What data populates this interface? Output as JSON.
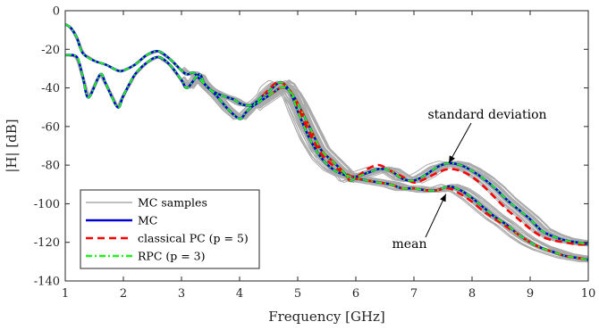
{
  "chart_data": {
    "type": "line",
    "xlabel": "Frequency [GHz]",
    "ylabel": "|H| [dB]",
    "xlim": [
      1,
      10
    ],
    "ylim": [
      -140,
      0
    ],
    "xticks": [
      1,
      2,
      3,
      4,
      5,
      6,
      7,
      8,
      9,
      10
    ],
    "yticks": [
      0,
      -20,
      -40,
      -60,
      -80,
      -100,
      -120,
      -140
    ],
    "legend_placement": "bottom-left",
    "legend": [
      {
        "label": "MC samples",
        "color": "#aaaaaa",
        "style": "solid"
      },
      {
        "label": "MC",
        "color": "#0000d0",
        "style": "solid"
      },
      {
        "label": "classical PC (p = 5)",
        "color": "#ff0000",
        "style": "dashed"
      },
      {
        "label": "RPC (p = 3)",
        "color": "#22ee22",
        "style": "dashdot"
      }
    ],
    "annotations": [
      {
        "text": "standard deviation",
        "points_to": [
          7.6,
          -79
        ]
      },
      {
        "text": "mean",
        "points_to": [
          7.55,
          -95
        ]
      }
    ],
    "series": [
      {
        "name": "MC",
        "role": "standard deviation",
        "x": [
          1.0,
          1.1,
          1.2,
          1.3,
          1.5,
          1.7,
          1.9,
          2.0,
          2.2,
          2.4,
          2.6,
          2.8,
          3.0,
          3.1,
          3.2,
          3.3,
          3.5,
          3.7,
          3.9,
          4.0,
          4.1,
          4.2,
          4.3,
          4.4,
          4.5,
          4.6,
          4.7,
          4.8,
          4.9,
          5.0,
          5.2,
          5.4,
          5.6,
          5.8,
          6.0,
          6.2,
          6.4,
          6.6,
          6.8,
          7.0,
          7.2,
          7.4,
          7.6,
          7.8,
          8.0,
          8.2,
          8.4,
          8.6,
          8.8,
          9.0,
          9.2,
          9.4,
          9.6,
          9.8,
          10.0
        ],
        "values": [
          -7,
          -9,
          -14,
          -22,
          -26,
          -28,
          -31,
          -31,
          -28,
          -23,
          -21,
          -25,
          -31,
          -33,
          -32,
          -35,
          -41,
          -44,
          -46,
          -48,
          -49,
          -49,
          -47,
          -44,
          -42,
          -39,
          -37,
          -39,
          -44,
          -52,
          -66,
          -76,
          -82,
          -85,
          -86,
          -84,
          -82,
          -83,
          -87,
          -88,
          -85,
          -81,
          -79,
          -80,
          -83,
          -87,
          -92,
          -98,
          -103,
          -108,
          -114,
          -117,
          -119,
          -120,
          -121
        ]
      },
      {
        "name": "MC",
        "role": "mean",
        "x": [
          1.0,
          1.2,
          1.3,
          1.4,
          1.6,
          1.7,
          1.9,
          2.0,
          2.2,
          2.4,
          2.6,
          2.8,
          3.0,
          3.1,
          3.3,
          3.4,
          3.6,
          3.8,
          4.0,
          4.1,
          4.2,
          4.3,
          4.4,
          4.5,
          4.6,
          4.7,
          4.8,
          4.9,
          5.0,
          5.2,
          5.4,
          5.6,
          5.8,
          5.9,
          6.0,
          6.2,
          6.4,
          6.6,
          6.8,
          7.0,
          7.2,
          7.4,
          7.6,
          7.8,
          8.0,
          8.2,
          8.4,
          8.6,
          8.8,
          9.0,
          9.2,
          9.4,
          9.6,
          9.8,
          10.0
        ],
        "values": [
          -23,
          -24,
          -34,
          -45,
          -33,
          -38,
          -50,
          -44,
          -33,
          -27,
          -24,
          -28,
          -36,
          -40,
          -33,
          -38,
          -44,
          -51,
          -56,
          -53,
          -50,
          -48,
          -46,
          -44,
          -42,
          -40,
          -40,
          -43,
          -48,
          -60,
          -72,
          -78,
          -84,
          -88,
          -87,
          -88,
          -89,
          -90,
          -92,
          -92,
          -93,
          -93,
          -91,
          -93,
          -97,
          -102,
          -107,
          -111,
          -116,
          -120,
          -123,
          -125,
          -127,
          -128,
          -129
        ]
      },
      {
        "name": "classical PC (p = 5)",
        "role": "standard deviation",
        "x": [
          4.4,
          4.5,
          4.6,
          4.7,
          4.8,
          4.9,
          5.0,
          5.2,
          5.4,
          5.6,
          5.8,
          6.0,
          6.2,
          6.4,
          6.6,
          6.8,
          7.0,
          7.2,
          7.4,
          7.6,
          7.8,
          8.0,
          8.2,
          8.4,
          8.6,
          8.8,
          9.0,
          9.2,
          9.4,
          9.6,
          9.8,
          10.0
        ],
        "values": [
          -44,
          -41,
          -38,
          -37,
          -39,
          -43,
          -50,
          -63,
          -74,
          -80,
          -84,
          -86,
          -82,
          -80,
          -83,
          -86,
          -89,
          -87,
          -84,
          -82,
          -83,
          -86,
          -91,
          -97,
          -103,
          -108,
          -113,
          -117,
          -119,
          -120,
          -121,
          -121
        ]
      },
      {
        "name": "classical PC (p = 5)",
        "role": "mean",
        "x": [
          4.5,
          4.6,
          4.7,
          4.8,
          4.9,
          5.0,
          5.2,
          5.4,
          5.6,
          5.8,
          5.9,
          6.0,
          6.2,
          6.4,
          6.6,
          6.8,
          7.0,
          7.2,
          7.4,
          7.6,
          7.8,
          8.0,
          8.2,
          8.4,
          8.6,
          8.8,
          9.0,
          9.2,
          9.4,
          9.6,
          9.8,
          10.0
        ],
        "values": [
          -44,
          -42,
          -40,
          -40,
          -43,
          -48,
          -60,
          -72,
          -78,
          -84,
          -88,
          -87,
          -88,
          -89,
          -90,
          -92,
          -92,
          -93,
          -93,
          -92,
          -95,
          -99,
          -104,
          -108,
          -112,
          -116,
          -120,
          -123,
          -125,
          -127,
          -128,
          -129
        ]
      },
      {
        "name": "RPC (p = 3)",
        "role": "standard deviation",
        "x": [
          1.0,
          1.1,
          1.2,
          1.3,
          1.5,
          1.7,
          1.9,
          2.0,
          2.2,
          2.4,
          2.6,
          2.8,
          3.0,
          3.1,
          3.2,
          3.3,
          3.5,
          3.7,
          3.9,
          4.0,
          4.1,
          4.2,
          4.3,
          4.4,
          4.5,
          4.6,
          4.7,
          4.8,
          4.9,
          5.0,
          5.2,
          5.4,
          5.6,
          5.8,
          6.0,
          6.2,
          6.4,
          6.6,
          6.8,
          7.0,
          7.2,
          7.4,
          7.6,
          7.8,
          8.0,
          8.2,
          8.4,
          8.6,
          8.8,
          9.0,
          9.2,
          9.4,
          9.6,
          9.8,
          10.0
        ],
        "values": [
          -7,
          -9,
          -14,
          -22,
          -26,
          -28,
          -31,
          -31,
          -28,
          -23,
          -21,
          -25,
          -31,
          -33,
          -32,
          -35,
          -41,
          -44,
          -46,
          -48,
          -49,
          -49,
          -47,
          -44,
          -42,
          -39,
          -37,
          -39,
          -44,
          -52,
          -66,
          -76,
          -82,
          -85,
          -86,
          -84,
          -82,
          -83,
          -87,
          -88,
          -85,
          -81,
          -79,
          -80,
          -83,
          -87,
          -92,
          -98,
          -103,
          -108,
          -114,
          -117,
          -119,
          -120,
          -121
        ]
      },
      {
        "name": "RPC (p = 3)",
        "role": "mean",
        "x": [
          1.0,
          1.2,
          1.3,
          1.4,
          1.6,
          1.7,
          1.9,
          2.0,
          2.2,
          2.4,
          2.6,
          2.8,
          3.0,
          3.1,
          3.3,
          3.4,
          3.6,
          3.8,
          4.0,
          4.1,
          4.2,
          4.3,
          4.4,
          4.5,
          4.6,
          4.7,
          4.8,
          4.9,
          5.0,
          5.2,
          5.4,
          5.6,
          5.8,
          5.9,
          6.0,
          6.2,
          6.4,
          6.6,
          6.8,
          7.0,
          7.2,
          7.4,
          7.6,
          7.8,
          8.0,
          8.2,
          8.4,
          8.6,
          8.8,
          9.0,
          9.2,
          9.4,
          9.6,
          9.8,
          10.0
        ],
        "values": [
          -23,
          -24,
          -34,
          -45,
          -33,
          -38,
          -50,
          -44,
          -33,
          -27,
          -24,
          -28,
          -36,
          -40,
          -33,
          -38,
          -44,
          -51,
          -56,
          -53,
          -50,
          -48,
          -46,
          -44,
          -42,
          -40,
          -40,
          -43,
          -48,
          -60,
          -72,
          -78,
          -84,
          -88,
          -87,
          -88,
          -89,
          -90,
          -92,
          -92,
          -93,
          -93,
          -91,
          -93,
          -97,
          -102,
          -107,
          -111,
          -116,
          -120,
          -123,
          -125,
          -127,
          -128,
          -129
        ]
      }
    ]
  }
}
